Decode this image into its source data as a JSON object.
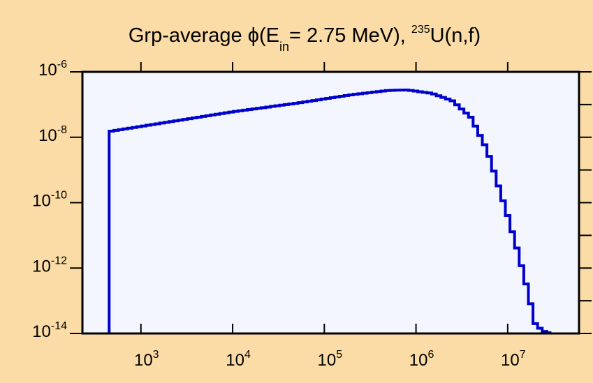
{
  "chart_data": {
    "type": "line",
    "step": true,
    "title": {
      "prefix": "Grp-average ",
      "symbol": "ϕ",
      "open": "(E",
      "sub": "in",
      "middle": "= 2.75 MeV), ",
      "sup": "235",
      "suffix": "U(n,f)"
    },
    "xlabel": "",
    "ylabel": "",
    "x_scale": "log",
    "y_scale": "log",
    "xlim": [
      230,
      60000000
    ],
    "ylim": [
      1e-14,
      1e-06
    ],
    "x_ticks": [
      {
        "value": 1000,
        "base": "10",
        "exp": "3"
      },
      {
        "value": 10000,
        "base": "10",
        "exp": "4"
      },
      {
        "value": 100000,
        "base": "10",
        "exp": "5"
      },
      {
        "value": 1000000,
        "base": "10",
        "exp": "6"
      },
      {
        "value": 10000000,
        "base": "10",
        "exp": "7"
      }
    ],
    "y_ticks": [
      {
        "value": 1e-06,
        "base": "10",
        "exp": "-6"
      },
      {
        "value": 1e-08,
        "base": "10",
        "exp": "-8"
      },
      {
        "value": 1e-10,
        "base": "10",
        "exp": "-10"
      },
      {
        "value": 1e-12,
        "base": "10",
        "exp": "-12"
      },
      {
        "value": 1e-14,
        "base": "10",
        "exp": "-14"
      }
    ],
    "y_minor_ticks": [
      1e-07,
      1e-09,
      1e-11,
      1e-13
    ],
    "grid": false,
    "line_color": "#0000cc",
    "plot_background": "#f4f6ff",
    "series": [
      {
        "x_start": 450,
        "x_end": 30000000,
        "points": [
          [
            450,
            1.5e-08
          ],
          [
            3000,
            3.5e-08
          ],
          [
            10000,
            6e-08
          ],
          [
            50000,
            1.1e-07
          ],
          [
            200000,
            2e-07
          ],
          [
            500000,
            2.7e-07
          ],
          [
            800000,
            2.8e-07
          ],
          [
            1500000,
            2.2e-07
          ],
          [
            2500000,
            1.3e-07
          ],
          [
            4000000,
            4e-08
          ],
          [
            6000000,
            4e-09
          ],
          [
            8000000,
            3e-10
          ],
          [
            10000000,
            4e-11
          ],
          [
            13000000,
            3e-12
          ],
          [
            16000000,
            3e-13
          ],
          [
            20000000,
            2e-14
          ],
          [
            24000000,
            1.2e-14
          ],
          [
            30000000,
            1e-14
          ]
        ]
      }
    ]
  }
}
